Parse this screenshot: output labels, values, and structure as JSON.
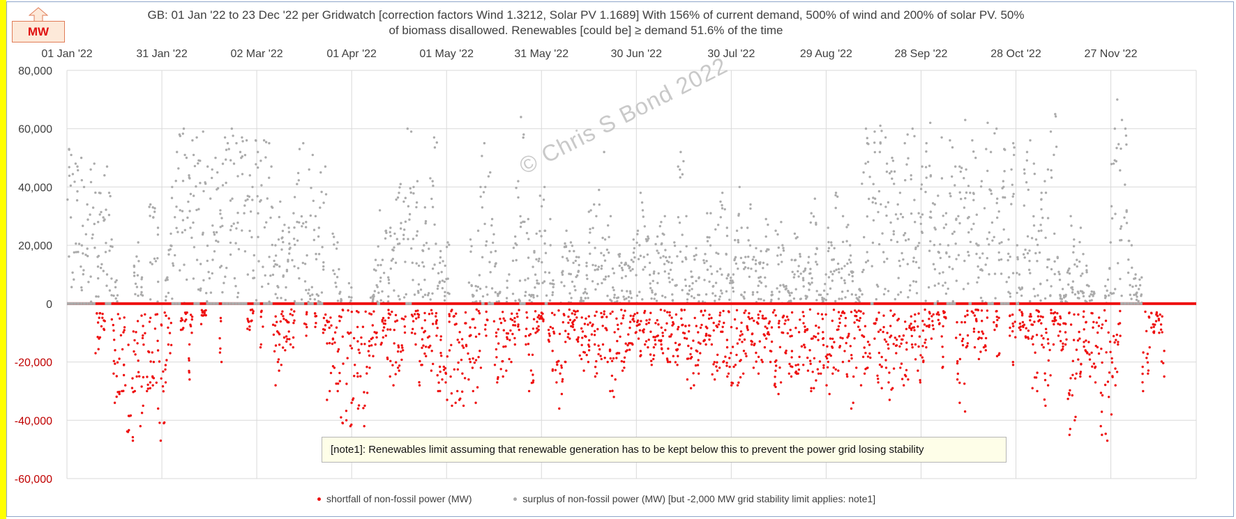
{
  "badge": {
    "label": "MW",
    "arrow_icon": "up-arrow-icon"
  },
  "title": {
    "line1": "GB: 01 Jan '22 to 23 Dec '22 per Gridwatch [correction factors Wind 1.3212, Solar PV 1.1689]   With 156% of current demand, 500% of wind and 200% of solar PV.  50%",
    "line2": "of biomass disallowed.   Renewables [could be] ≥ demand 51.6% of the time"
  },
  "watermark": "© Chris S Bond  2022",
  "note": "[note1]: Renewables limit assuming that renewable generation has to be kept below this to prevent the power grid losing stability",
  "colors": {
    "shortfall": "#ee1111",
    "surplus": "#ababab",
    "negative_tick": "#c00000",
    "grid": "#d9d9d9",
    "zero_line": "#ee1111"
  },
  "chart_data": {
    "type": "scatter",
    "title": "GB: 01 Jan '22 to 23 Dec '22 per Gridwatch [correction factors Wind 1.3212, Solar PV 1.1689]   With 156% of current demand, 500% of wind and 200% of solar PV.  50% of biomass disallowed.   Renewables [could be] ≥ demand 51.6% of the time",
    "xlabel": "",
    "ylabel": "MW",
    "x_range": [
      "01 Jan '22",
      "23 Dec '22"
    ],
    "x_ticks": [
      "01 Jan '22",
      "31 Jan '22",
      "02 Mar '22",
      "01 Apr '22",
      "01 May '22",
      "31 May '22",
      "30 Jun '22",
      "30 Jul '22",
      "29 Aug '22",
      "28 Sep '22",
      "28 Oct '22",
      "27 Nov '22"
    ],
    "ylim": [
      -60000,
      80000
    ],
    "y_ticks": [
      80000,
      60000,
      40000,
      20000,
      0,
      -20000,
      -40000,
      -60000
    ],
    "y_tick_labels": [
      "80,000",
      "60,000",
      "40,000",
      "20,000",
      "0",
      "-20,000",
      "-40,000",
      "-60,000"
    ],
    "grid": true,
    "legend_position": "bottom",
    "x_axis_position": "top",
    "series": [
      {
        "name": "shortfall of non-fossil power (MW)",
        "marker": "dot",
        "day_min": [
          0,
          0,
          0,
          0,
          0,
          0,
          0,
          0,
          0,
          -17000,
          -12000,
          -9000,
          0,
          0,
          -24000,
          -34000,
          -31000,
          -30000,
          -28000,
          -44000,
          -47000,
          -30000,
          -25000,
          -42000,
          -35000,
          -30000,
          -29000,
          -28000,
          -36000,
          -47000,
          -41000,
          -27000,
          -17000,
          0,
          0,
          0,
          -9000,
          -6000,
          -26000,
          -10000,
          0,
          0,
          -7000,
          -4000,
          0,
          0,
          0,
          0,
          -20000,
          0,
          0,
          0,
          0,
          0,
          0,
          0,
          0,
          -9000,
          -6000,
          0,
          0,
          -15000,
          0,
          0,
          0,
          -28000,
          -20000,
          -23000,
          -16000,
          -13000,
          -14000,
          -15000,
          0,
          0,
          0,
          -11000,
          0,
          0,
          -8000,
          0,
          0,
          -10000,
          -33000,
          -30000,
          -22000,
          -30000,
          -39000,
          -41000,
          -40000,
          -42000,
          -33000,
          -25000,
          -36000,
          -42000,
          -35000,
          -22000,
          -18000,
          -14000,
          0,
          -14000,
          -11000,
          -19000,
          -25000,
          -28000,
          -22000,
          -23000,
          -16000,
          0,
          0,
          -10000,
          -14000,
          -28000,
          -21000,
          -18000,
          -15000,
          -23000,
          -11000,
          -30000,
          -26000,
          -27000,
          -33000,
          -35000,
          -34000,
          -30000,
          -33000,
          -35000,
          -26000,
          -20000,
          -30000,
          -34000,
          -22000,
          0,
          -11000,
          0,
          0,
          -21000,
          -27000,
          -25000,
          -23000,
          -19000,
          -20000,
          -14000,
          -9000,
          0,
          0,
          -14000,
          -30000,
          -27000,
          -10000,
          -9000,
          -6000,
          0,
          -13000,
          -23000,
          -27000,
          -36000,
          -31000,
          -20000,
          -12000,
          -8000,
          -9000,
          -13000,
          -19000,
          -23000,
          -20000,
          -16000,
          -14000,
          -25000,
          -19000,
          -14000,
          -20000,
          -30000,
          -32000,
          -26000,
          -17000,
          -23000,
          -22000,
          -16000,
          -14000,
          -10000,
          -12000,
          -18000,
          -14000,
          -15000,
          -21000,
          -19000,
          -14000,
          -14000,
          -17000,
          -20000,
          -20000,
          -18000,
          -21000,
          -18000,
          -10000,
          -12000,
          -26000,
          -29000,
          -28000,
          -24000,
          -17000,
          -14000,
          -11000,
          -14000,
          -26000,
          -23000,
          -22000,
          -20000,
          -25000,
          -24000,
          -28000,
          -21000,
          -28000,
          -24000,
          -18000,
          -9000,
          -14000,
          -22000,
          -24000,
          -20000,
          -15000,
          -12000,
          -20000,
          -28000,
          -31000,
          -27000,
          -10000,
          -17000,
          -24000,
          -25000,
          -24000,
          -24000,
          -21000,
          -15000,
          -23000,
          -30000,
          -29000,
          -24000,
          -24000,
          -22000,
          -28000,
          -31000,
          -24000,
          -23000,
          -15000,
          -20000,
          -25000,
          -36000,
          -34000,
          -22000,
          -9000,
          -28000,
          -24000,
          -22000,
          0,
          -12000,
          -27000,
          -29000,
          -22000,
          -27000,
          -33000,
          -29000,
          -17000,
          -22000,
          -28000,
          -26000,
          -9000,
          -15000,
          -23000,
          -27000,
          -20000,
          -15000,
          -8000,
          -12000,
          0,
          -7000,
          -22000,
          -5000,
          0,
          0,
          0,
          -26000,
          -34000,
          -37000,
          -15000,
          0,
          -15000,
          -6000,
          -19000,
          -15000,
          -16000,
          0,
          0,
          -9000,
          -18000,
          0,
          0,
          0,
          -11000,
          -21000,
          0,
          -9000,
          -8000,
          -12000,
          -12000,
          -29000,
          -30000,
          -6000,
          -15000,
          -35000,
          -28000,
          -14000,
          -6000,
          -11000,
          -16000,
          -14000,
          -45000,
          -43000,
          -40000,
          -24000,
          -25000,
          -16000,
          -17000,
          -25000,
          -22000,
          -27000,
          -42000,
          -45000,
          -47000,
          -32000,
          -38000,
          -28000,
          -14000,
          0,
          0,
          0,
          0,
          0,
          0,
          0,
          -30000,
          -24000,
          -15000,
          -10000,
          -6000,
          -10000,
          -25000
        ]
      },
      {
        "name": "surplus of non-fossil power (MW)  [but -2,000 MW grid stability limit applies: note1]",
        "marker": "dot",
        "day_max": [
          53000,
          51000,
          48000,
          47000,
          50000,
          40000,
          34000,
          46000,
          48000,
          28000,
          38000,
          44000,
          47000,
          38000,
          22000,
          8000,
          0,
          0,
          0,
          0,
          0,
          13000,
          21000,
          9000,
          0,
          0,
          34000,
          33000,
          26000,
          0,
          0,
          9000,
          24000,
          40000,
          52000,
          58000,
          60000,
          51000,
          44000,
          56000,
          51000,
          57000,
          49000,
          59000,
          47000,
          46000,
          50000,
          45000,
          32000,
          57000,
          55000,
          53000,
          60000,
          55000,
          52000,
          57000,
          56000,
          44000,
          40000,
          56000,
          52000,
          49000,
          56000,
          55000,
          47000,
          20000,
          22000,
          35000,
          27000,
          15000,
          26000,
          31000,
          41000,
          53000,
          55000,
          28000,
          46000,
          51000,
          30000,
          26000,
          45000,
          47000,
          0,
          0,
          24000,
          21000,
          4000,
          0,
          0,
          7000,
          0,
          0,
          0,
          0,
          0,
          0,
          3000,
          15000,
          32000,
          15000,
          25000,
          9000,
          26000,
          24000,
          38000,
          41000,
          35000,
          60000,
          59000,
          40000,
          42000,
          13000,
          20000,
          33000,
          43000,
          42000,
          57000,
          14000,
          18000,
          13000,
          21000,
          0,
          0,
          0,
          0,
          0,
          0,
          22000,
          3000,
          6000,
          40000,
          55000,
          40000,
          45000,
          29000,
          18000,
          4000,
          0,
          0,
          10000,
          0,
          23000,
          42000,
          64000,
          58000,
          29000,
          3000,
          18000,
          24000,
          37000,
          40000,
          25000,
          29000,
          8000,
          0,
          0,
          16000,
          25000,
          18000,
          21000,
          18000,
          16000,
          2000,
          5000,
          14000,
          32000,
          34000,
          30000,
          39000,
          52000,
          22000,
          30000,
          12000,
          3000,
          17000,
          14000,
          14000,
          13000,
          15000,
          22000,
          25000,
          38000,
          32000,
          23000,
          14000,
          11000,
          23000,
          28000,
          24000,
          30000,
          16000,
          14000,
          21000,
          47000,
          52000,
          30000,
          6000,
          11000,
          19000,
          9000,
          0,
          17000,
          31000,
          31000,
          6000,
          27000,
          35000,
          38000,
          26000,
          10000,
          10000,
          25000,
          40000,
          26000,
          16000,
          26000,
          34000,
          19000,
          14000,
          18000,
          23000,
          29000,
          4000,
          0,
          25000,
          28000,
          20000,
          6000,
          4000,
          15000,
          24000,
          17000,
          11000,
          12000,
          16000,
          31000,
          36000,
          19000,
          3000,
          10000,
          26000,
          21000,
          19000,
          38000,
          12000,
          30000,
          27000,
          20000,
          11000,
          3000,
          5000,
          45000,
          60000,
          55000,
          41000,
          59000,
          52000,
          61000,
          57000,
          48000,
          50000,
          49000,
          34000,
          38000,
          55000,
          58000,
          44000,
          60000,
          28000,
          31000,
          47000,
          55000,
          62000,
          44000,
          34000,
          37000,
          57000,
          31000,
          20000,
          56000,
          47000,
          30000,
          47000,
          63000,
          46000,
          38000,
          56000,
          50000,
          20000,
          42000,
          53000,
          62000,
          52000,
          60000,
          36000,
          42000,
          53000,
          22000,
          46000,
          55000,
          20000,
          10000,
          46000,
          52000,
          56000,
          48000,
          22000,
          27000,
          38000,
          42000,
          46000,
          59000,
          65000,
          16000,
          5000,
          3000,
          12000,
          30000,
          22000,
          15000,
          26000,
          17000,
          13000,
          6000,
          4000,
          0,
          0,
          0,
          6000,
          21000,
          48000,
          60000,
          70000,
          63000,
          60000,
          32000,
          20000,
          10000,
          5000,
          9000
        ]
      }
    ]
  }
}
